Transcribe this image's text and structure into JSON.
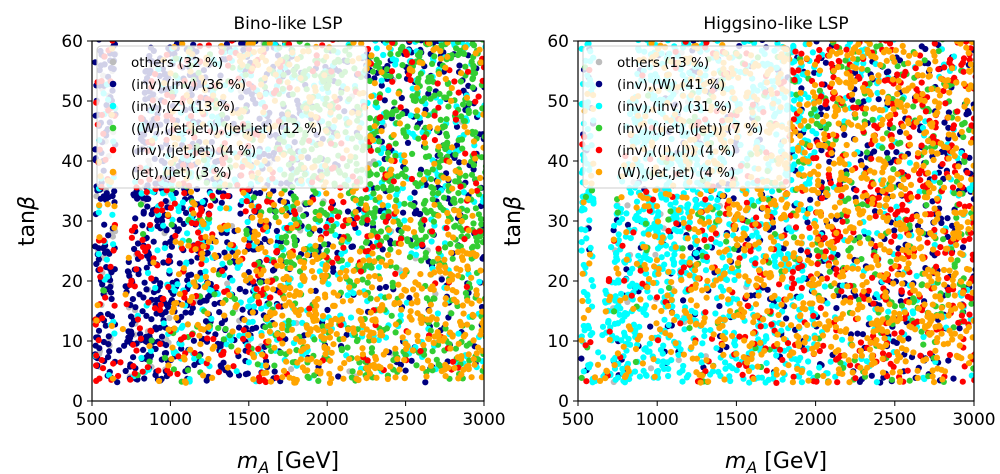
{
  "chart_data": [
    {
      "type": "scatter",
      "title": "Bino-like LSP",
      "xlabel_symbol": "m",
      "xlabel_subscript": "A",
      "xlabel_unit": " [GeV]",
      "ylabel_text": "tan",
      "ylabel_symbol": "β",
      "xlim": [
        500,
        3000
      ],
      "ylim": [
        0,
        60
      ],
      "xticks": [
        "500",
        "1000",
        "1500",
        "2000",
        "2500",
        "3000"
      ],
      "yticks": [
        "0",
        "10",
        "20",
        "30",
        "40",
        "50",
        "60"
      ],
      "grid": false,
      "legend_position": "upper-left",
      "series": [
        {
          "label": "others (32 %)",
          "color": "#bdbdbd"
        },
        {
          "label": "(inv),(inv) (36 %)",
          "color": "#000080"
        },
        {
          "label": "(inv),(Z) (13 %)",
          "color": "#00ffff"
        },
        {
          "label": "((W),(jet,jet)),(jet,jet) (12 %)",
          "color": "#32cd32"
        },
        {
          "label": "(inv),(jet,jet) (4 %)",
          "color": "#ff0000"
        },
        {
          "label": "(jet),(jet) (3 %)",
          "color": "#ffa500"
        }
      ]
    },
    {
      "type": "scatter",
      "title": "Higgsino-like LSP",
      "xlabel_symbol": "m",
      "xlabel_subscript": "A",
      "xlabel_unit": " [GeV]",
      "ylabel_text": "tan",
      "ylabel_symbol": "β",
      "xlim": [
        500,
        3000
      ],
      "ylim": [
        0,
        60
      ],
      "xticks": [
        "500",
        "1000",
        "1500",
        "2000",
        "2500",
        "3000"
      ],
      "yticks": [
        "0",
        "10",
        "20",
        "30",
        "40",
        "50",
        "60"
      ],
      "grid": false,
      "legend_position": "upper-left",
      "series": [
        {
          "label": "others (13 %)",
          "color": "#bdbdbd"
        },
        {
          "label": "(inv),(W) (41 %)",
          "color": "#000080"
        },
        {
          "label": "(inv),(inv) (31 %)",
          "color": "#00ffff"
        },
        {
          "label": "(inv),((jet),(jet)) (7 %)",
          "color": "#32cd32"
        },
        {
          "label": "(inv),((l),(l)) (4 %)",
          "color": "#ff0000"
        },
        {
          "label": "(W),(jet,jet) (4 %)",
          "color": "#ffa500"
        }
      ]
    }
  ]
}
